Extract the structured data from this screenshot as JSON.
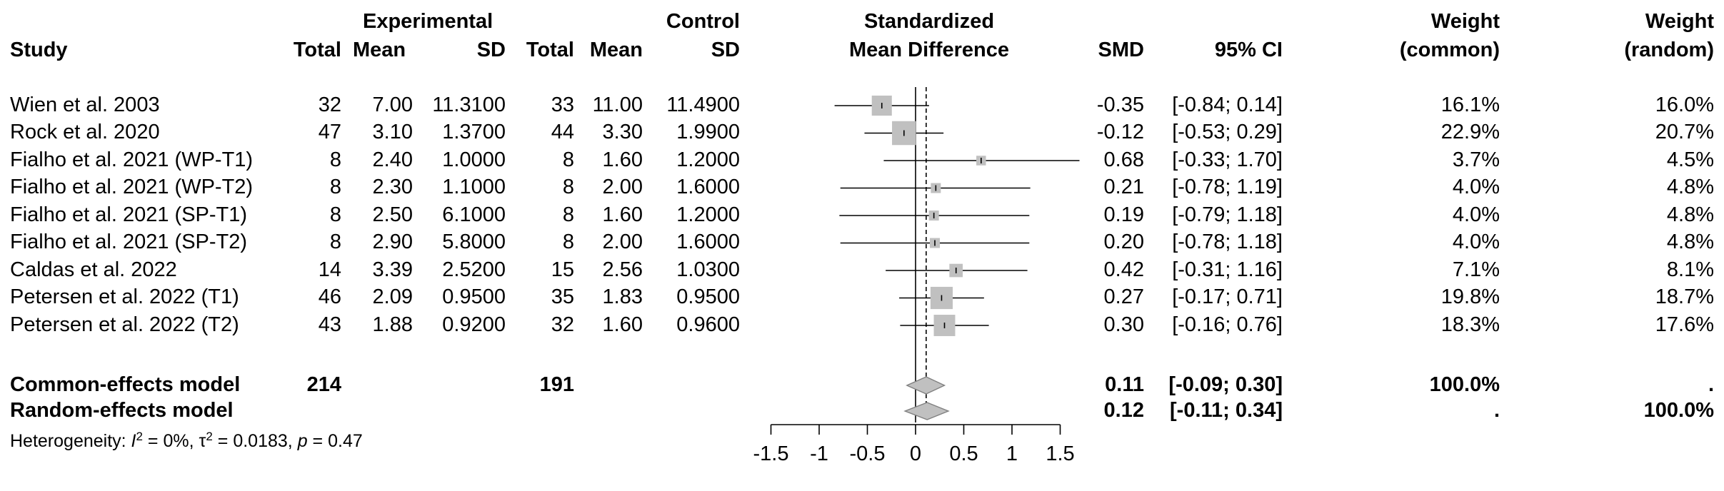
{
  "chart_data": {
    "type": "forest",
    "headers": {
      "study": "Study",
      "experimental": "Experimental",
      "control": "Control",
      "exp_total": "Total",
      "exp_mean": "Mean",
      "exp_sd": "SD",
      "ctl_total": "Total",
      "ctl_mean": "Mean",
      "ctl_sd": "SD",
      "smd_line1": "Standardized",
      "smd_line2": "Mean Difference",
      "smd": "SMD",
      "ci": "95% CI",
      "w_common_1": "Weight",
      "w_common_2": "(common)",
      "w_random_1": "Weight",
      "w_random_2": "(random)"
    },
    "studies": [
      {
        "name": "Wien et al. 2003",
        "e_total": "32",
        "e_mean": "7.00",
        "e_sd": "11.3100",
        "c_total": "33",
        "c_mean": "11.00",
        "c_sd": "11.4900",
        "smd": -0.35,
        "lower": -0.84,
        "upper": 0.14,
        "smd_text": "-0.35",
        "ci_text": "[-0.84; 0.14]",
        "w_common": "16.1%",
        "w_random": "16.0%",
        "weight": 16.1
      },
      {
        "name": "Rock et al. 2020",
        "e_total": "47",
        "e_mean": "3.10",
        "e_sd": "1.3700",
        "c_total": "44",
        "c_mean": "3.30",
        "c_sd": "1.9900",
        "smd": -0.12,
        "lower": -0.53,
        "upper": 0.29,
        "smd_text": "-0.12",
        "ci_text": "[-0.53; 0.29]",
        "w_common": "22.9%",
        "w_random": "20.7%",
        "weight": 22.9
      },
      {
        "name": "Fialho et al. 2021 (WP-T1)",
        "e_total": "8",
        "e_mean": "2.40",
        "e_sd": "1.0000",
        "c_total": "8",
        "c_mean": "1.60",
        "c_sd": "1.2000",
        "smd": 0.68,
        "lower": -0.33,
        "upper": 1.7,
        "smd_text": "0.68",
        "ci_text": "[-0.33; 1.70]",
        "w_common": "3.7%",
        "w_random": "4.5%",
        "weight": 3.7
      },
      {
        "name": "Fialho et al. 2021 (WP-T2)",
        "e_total": "8",
        "e_mean": "2.30",
        "e_sd": "1.1000",
        "c_total": "8",
        "c_mean": "2.00",
        "c_sd": "1.6000",
        "smd": 0.21,
        "lower": -0.78,
        "upper": 1.19,
        "smd_text": "0.21",
        "ci_text": "[-0.78; 1.19]",
        "w_common": "4.0%",
        "w_random": "4.8%",
        "weight": 4.0
      },
      {
        "name": "Fialho et al. 2021 (SP-T1)",
        "e_total": "8",
        "e_mean": "2.50",
        "e_sd": "6.1000",
        "c_total": "8",
        "c_mean": "1.60",
        "c_sd": "1.2000",
        "smd": 0.19,
        "lower": -0.79,
        "upper": 1.18,
        "smd_text": "0.19",
        "ci_text": "[-0.79; 1.18]",
        "w_common": "4.0%",
        "w_random": "4.8%",
        "weight": 4.0
      },
      {
        "name": "Fialho et al. 2021 (SP-T2)",
        "e_total": "8",
        "e_mean": "2.90",
        "e_sd": "5.8000",
        "c_total": "8",
        "c_mean": "2.00",
        "c_sd": "1.6000",
        "smd": 0.2,
        "lower": -0.78,
        "upper": 1.18,
        "smd_text": "0.20",
        "ci_text": "[-0.78; 1.18]",
        "w_common": "4.0%",
        "w_random": "4.8%",
        "weight": 4.0
      },
      {
        "name": "Caldas et al. 2022",
        "e_total": "14",
        "e_mean": "3.39",
        "e_sd": "2.5200",
        "c_total": "15",
        "c_mean": "2.56",
        "c_sd": "1.0300",
        "smd": 0.42,
        "lower": -0.31,
        "upper": 1.16,
        "smd_text": "0.42",
        "ci_text": "[-0.31; 1.16]",
        "w_common": "7.1%",
        "w_random": "8.1%",
        "weight": 7.1
      },
      {
        "name": "Petersen et al. 2022 (T1)",
        "e_total": "46",
        "e_mean": "2.09",
        "e_sd": "0.9500",
        "c_total": "35",
        "c_mean": "1.83",
        "c_sd": "0.9500",
        "smd": 0.27,
        "lower": -0.17,
        "upper": 0.71,
        "smd_text": "0.27",
        "ci_text": "[-0.17; 0.71]",
        "w_common": "19.8%",
        "w_random": "18.7%",
        "weight": 19.8
      },
      {
        "name": "Petersen et al. 2022 (T2)",
        "e_total": "43",
        "e_mean": "1.88",
        "e_sd": "0.9200",
        "c_total": "32",
        "c_mean": "1.60",
        "c_sd": "0.9600",
        "smd": 0.3,
        "lower": -0.16,
        "upper": 0.76,
        "smd_text": "0.30",
        "ci_text": "[-0.16; 0.76]",
        "w_common": "18.3%",
        "w_random": "17.6%",
        "weight": 18.3
      }
    ],
    "pooled": [
      {
        "name": "Common-effects model",
        "e_total": "214",
        "c_total": "191",
        "smd": 0.11,
        "lower": -0.09,
        "upper": 0.3,
        "smd_text": "0.11",
        "ci_text": "[-0.09; 0.30]",
        "w_common": "100.0%",
        "w_random": "."
      },
      {
        "name": "Random-effects model",
        "e_total": "",
        "c_total": "",
        "smd": 0.12,
        "lower": -0.11,
        "upper": 0.34,
        "smd_text": "0.12",
        "ci_text": "[-0.11; 0.34]",
        "w_common": ".",
        "w_random": "100.0%"
      }
    ],
    "heterogeneity": {
      "prefix": "Heterogeneity: ",
      "i2_symbol": "I",
      "i2_value": " = 0%, ",
      "tau_symbol": "τ",
      "tau_value": " = 0.0183, ",
      "p_symbol": "p",
      "p_value": " = 0.47"
    },
    "axis": {
      "xlim": [
        -1.5,
        1.5
      ],
      "ticks": [
        -1.5,
        -1,
        -0.5,
        0,
        0.5,
        1,
        1.5
      ],
      "tick_labels": [
        "-1.5",
        "-1",
        "-0.5",
        "0",
        "0.5",
        "1",
        "1.5"
      ],
      "null_line": 0
    },
    "colors": {
      "square": "#c0c0c0",
      "diamond": "#c0c0c0",
      "line": "#000000"
    }
  }
}
